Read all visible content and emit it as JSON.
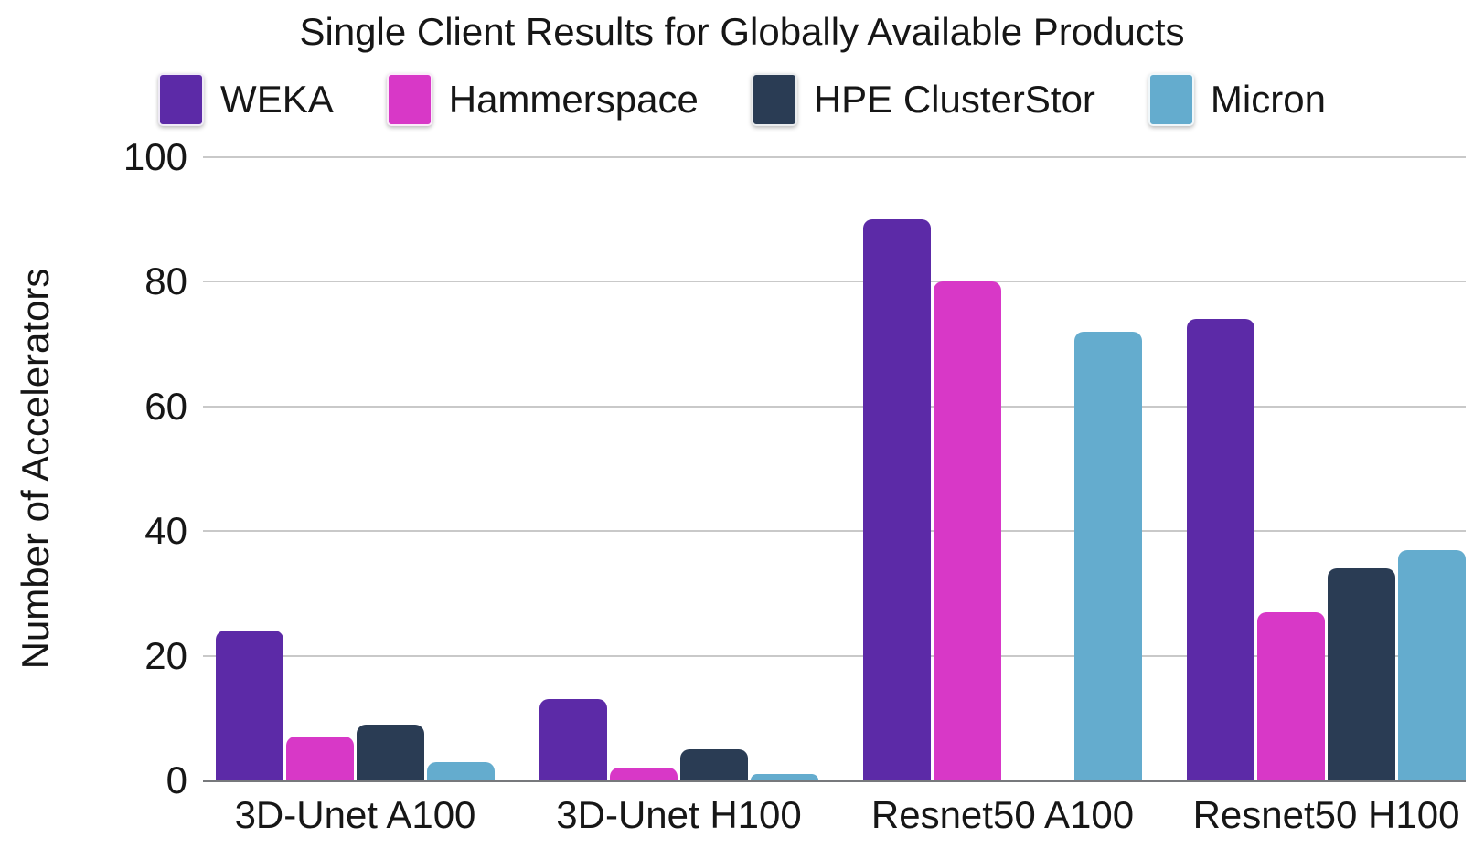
{
  "chart_title": "Single Client Results for Globally Available Products",
  "chart_data": {
    "type": "bar",
    "title": "Single Client Results for Globally Available Products",
    "xlabel": "",
    "ylabel": "Number of Accelerators",
    "categories": [
      "3D-Unet A100",
      "3D-Unet H100",
      "Resnet50 A100",
      "Resnet50 H100"
    ],
    "series": [
      {
        "name": "WEKA",
        "color": "#5C2AA7",
        "values": [
          24,
          13,
          90,
          74
        ]
      },
      {
        "name": "Hammerspace",
        "color": "#D838C7",
        "values": [
          7,
          2,
          80,
          27
        ]
      },
      {
        "name": "HPE ClusterStor",
        "color": "#2A3C54",
        "values": [
          9,
          5,
          null,
          34
        ]
      },
      {
        "name": "Micron",
        "color": "#64ACCE",
        "values": [
          3,
          1,
          72,
          37
        ]
      }
    ],
    "ylim": [
      0,
      100
    ],
    "yticks": [
      0,
      20,
      40,
      60,
      80,
      100
    ],
    "grid": true,
    "legend_position": "top",
    "colors": {
      "gridline": "#c9c9c9",
      "axis_baseline": "#77797c",
      "text": "#161616",
      "background": "#ffffff"
    }
  }
}
